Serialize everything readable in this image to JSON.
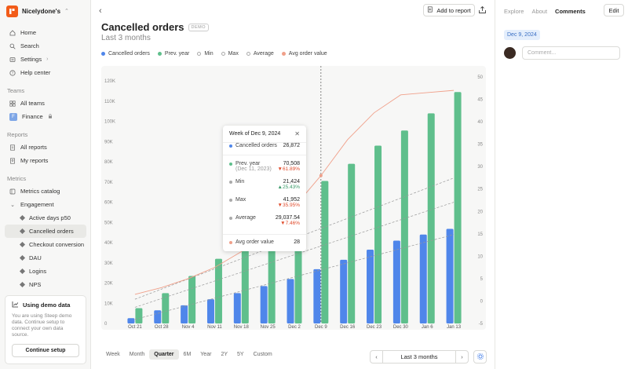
{
  "workspace": {
    "name": "Nicelydone's"
  },
  "sidebar": {
    "top": [
      {
        "label": "Home",
        "icon": "home-icon"
      },
      {
        "label": "Search",
        "icon": "search-icon"
      },
      {
        "label": "Settings",
        "icon": "gear-icon"
      },
      {
        "label": "Help center",
        "icon": "help-icon"
      }
    ],
    "teams_label": "Teams",
    "teams": [
      {
        "label": "All teams"
      },
      {
        "label": "Finance",
        "badge": "F"
      }
    ],
    "reports_label": "Reports",
    "reports": [
      {
        "label": "All reports"
      },
      {
        "label": "My reports"
      }
    ],
    "metrics_label": "Metrics",
    "metrics_catalog": "Metrics catalog",
    "engagement": "Engagement",
    "metric_items": [
      "Active days p50",
      "Cancelled orders",
      "Checkout conversion",
      "DAU",
      "Logins",
      "NPS"
    ],
    "demo": {
      "title": "Using demo data",
      "text": "You are using Steep demo data. Continue setup to connect your own data source.",
      "button": "Continue setup"
    }
  },
  "header": {
    "add_to_report": "Add to report",
    "title": "Cancelled orders",
    "tag": "DEMO",
    "subtitle": "Last 3 months"
  },
  "legend": [
    {
      "label": "Cancelled orders",
      "color": "#4f86ea",
      "style": "dot"
    },
    {
      "label": "Prev. year",
      "color": "#5fbf8c",
      "style": "dot"
    },
    {
      "label": "Min",
      "color": "#aaaaaa",
      "style": "ring"
    },
    {
      "label": "Max",
      "color": "#aaaaaa",
      "style": "ring"
    },
    {
      "label": "Average",
      "color": "#aaaaaa",
      "style": "ring"
    },
    {
      "label": "Avg order value",
      "color": "#f0a08a",
      "style": "dot"
    }
  ],
  "chart_data": {
    "type": "bar",
    "categories": [
      "Oct 21",
      "Oct 28",
      "Nov 4",
      "Nov 11",
      "Nov 18",
      "Nov 25",
      "Dec 2",
      "Dec 9",
      "Dec 16",
      "Dec 23",
      "Dec 30",
      "Jan 6",
      "Jan 13"
    ],
    "series": [
      {
        "name": "Cancelled orders",
        "color": "#4f86ea",
        "axis": "left",
        "values": [
          2600,
          6500,
          9000,
          12000,
          15000,
          18500,
          22000,
          26872,
          31500,
          36500,
          41000,
          44000,
          46800
        ]
      },
      {
        "name": "Prev. year",
        "color": "#5fbf8c",
        "axis": "left",
        "values": [
          7600,
          15000,
          23500,
          32000,
          40000,
          48500,
          52000,
          70508,
          79000,
          88000,
          95500,
          104000,
          114500
        ]
      },
      {
        "name": "Avg order value",
        "color": "#f0a08a",
        "axis": "right",
        "type": "line",
        "values": [
          1.5,
          3,
          5,
          7.5,
          11,
          15.5,
          21,
          28,
          36,
          42,
          46,
          46.5,
          47
        ]
      }
    ],
    "y_left": {
      "ticks": [
        "120K",
        "110K",
        "100K",
        "90K",
        "80K",
        "70K",
        "60K",
        "50K",
        "40K",
        "30K",
        "20K",
        "10K",
        "0"
      ],
      "range": [
        0,
        122000
      ]
    },
    "y_right": {
      "ticks": [
        "50",
        "45",
        "40",
        "35",
        "30",
        "25",
        "20",
        "15",
        "10",
        "5",
        "0",
        "-5"
      ],
      "range": [
        -5,
        50
      ]
    },
    "highlight_index": 7
  },
  "tooltip": {
    "title": "Week of Dec 9, 2024",
    "rows": [
      {
        "label": "Cancelled orders",
        "value": "26,872",
        "color": "#4f86ea"
      },
      {
        "label": "Prev. year",
        "sublabel": "(Dec 11, 2023)",
        "value": "70,508",
        "change": "61.89%",
        "dir": "down",
        "color": "#5fbf8c"
      },
      {
        "label": "Min",
        "value": "21,424",
        "change": "25.43%",
        "dir": "up",
        "color": "#aaaaaa"
      },
      {
        "label": "Max",
        "value": "41,952",
        "change": "35.95%",
        "dir": "down",
        "color": "#aaaaaa"
      },
      {
        "label": "Average",
        "value": "29,037.54",
        "change": "7.46%",
        "dir": "down",
        "color": "#aaaaaa"
      },
      {
        "label": "Avg order value",
        "value": "28",
        "color": "#f0a08a"
      }
    ]
  },
  "footer": {
    "ranges": [
      "Week",
      "Month",
      "Quarter",
      "6M",
      "Year",
      "2Y",
      "5Y",
      "Custom"
    ],
    "active_range": "Quarter",
    "period": "Last 3 months"
  },
  "right_panel": {
    "tabs": [
      "Explore",
      "About",
      "Comments"
    ],
    "active_tab": "Comments",
    "edit": "Edit",
    "date_chip": "Dec 9, 2024",
    "comment_placeholder": "Comment..."
  }
}
